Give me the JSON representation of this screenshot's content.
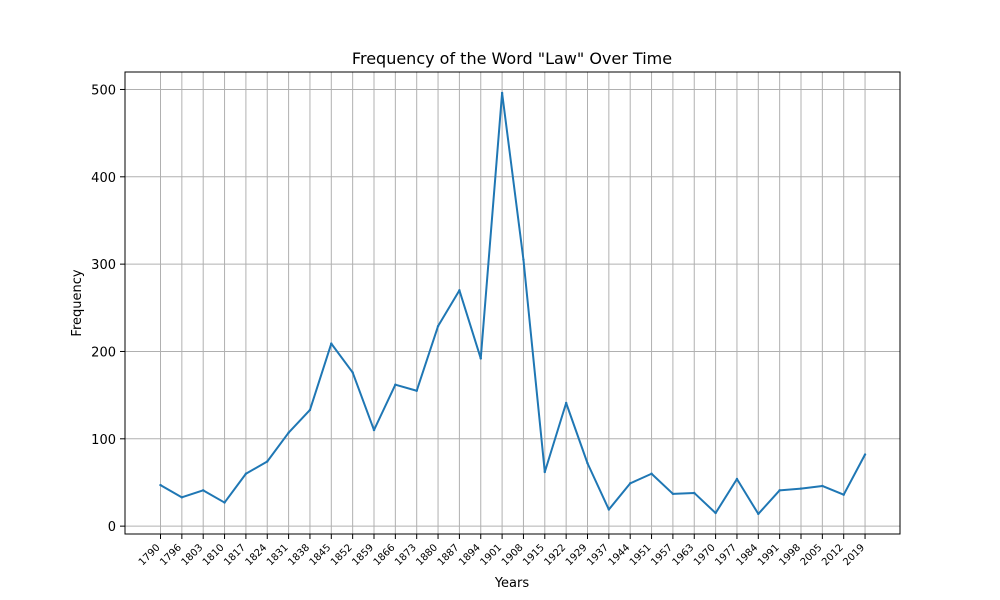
{
  "chart_data": {
    "type": "line",
    "title": "Frequency of the Word \"Law\" Over Time",
    "xlabel": "Years",
    "ylabel": "Frequency",
    "ylim": [
      -9,
      520
    ],
    "yticks": [
      0,
      100,
      200,
      300,
      400,
      500
    ],
    "grid": true,
    "series_color": "#1f77b4",
    "x": [
      "1790",
      "1796",
      "1803",
      "1810",
      "1817",
      "1824",
      "1831",
      "1838",
      "1845",
      "1852",
      "1859",
      "1866",
      "1873",
      "1880",
      "1887",
      "1894",
      "1901",
      "1908",
      "1915",
      "1922",
      "1929",
      "1937",
      "1944",
      "1951",
      "1957",
      "1963",
      "1970",
      "1977",
      "1984",
      "1991",
      "1998",
      "2005",
      "2012",
      "2019"
    ],
    "series": [
      {
        "values": [
          47,
          33,
          41,
          27,
          60,
          74,
          107,
          133,
          209,
          176,
          110,
          162,
          155,
          229,
          270,
          192,
          496,
          305,
          62,
          141,
          72,
          19,
          49,
          60,
          37,
          38,
          15,
          54,
          14,
          41,
          43,
          46,
          36,
          82
        ]
      }
    ]
  }
}
